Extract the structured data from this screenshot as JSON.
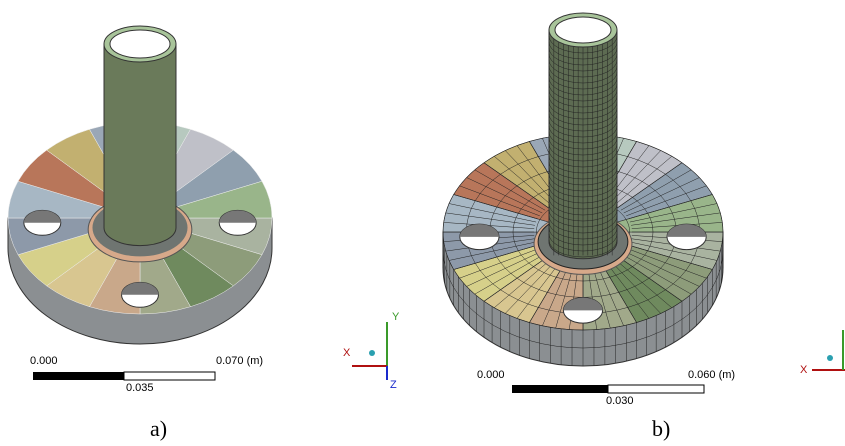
{
  "panels": [
    {
      "label": "a)",
      "scale": {
        "start": "0.000",
        "end": "0.070 (m)",
        "mid": "0.035"
      },
      "triad": {
        "x": "X",
        "y": "Y",
        "z": "Z"
      }
    },
    {
      "label": "b)",
      "scale": {
        "start": "0.000",
        "end": "0.060 (m)",
        "mid": "0.030"
      },
      "triad": {
        "x": "X"
      }
    }
  ]
}
